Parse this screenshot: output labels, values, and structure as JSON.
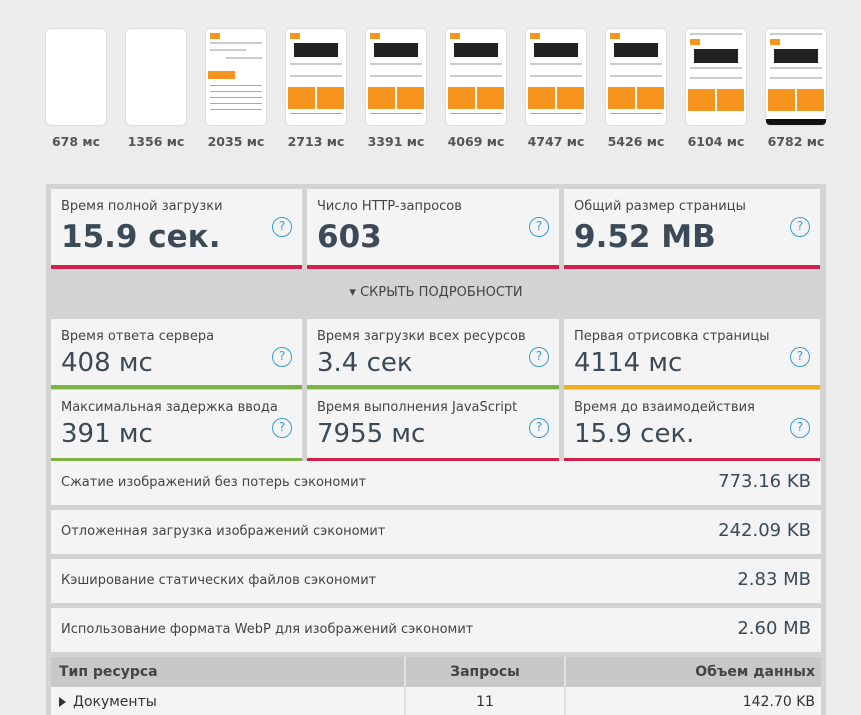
{
  "filmstrip": [
    {
      "label": "678 мс",
      "kind": "blank"
    },
    {
      "label": "1356 мс",
      "kind": "blank"
    },
    {
      "label": "2035 мс",
      "kind": "partial"
    },
    {
      "label": "2713 мс",
      "kind": "full"
    },
    {
      "label": "3391 мс",
      "kind": "full"
    },
    {
      "label": "4069 мс",
      "kind": "full"
    },
    {
      "label": "4747 мс",
      "kind": "full"
    },
    {
      "label": "5426 мс",
      "kind": "full"
    },
    {
      "label": "6104 мс",
      "kind": "full"
    },
    {
      "label": "6782 мс",
      "kind": "final"
    }
  ],
  "summary": {
    "load_time": {
      "label": "Время полной загрузки",
      "value": "15.9 сек.",
      "status": "bad"
    },
    "requests": {
      "label": "Число HTTP-запросов",
      "value": "603",
      "status": "bad"
    },
    "page_size": {
      "label": "Общий размер страницы",
      "value": "9.52 MB",
      "status": "bad"
    }
  },
  "toggle_label": "▾ СКРЫТЬ ПОДРОБНОСТИ",
  "help_glyph": "?",
  "details": {
    "server_response": {
      "label": "Время ответа сервера",
      "value": "408 мс",
      "status": "good"
    },
    "resources_load": {
      "label": "Время загрузки всех ресурсов",
      "value": "3.4 сек",
      "status": "good"
    },
    "first_paint": {
      "label": "Первая отрисовка страницы",
      "value": "4114 мс",
      "status": "warn"
    },
    "input_delay": {
      "label": "Максимальная задержка ввода",
      "value": "391 мс",
      "status": "good"
    },
    "js_execution": {
      "label": "Время выполнения JavaScript",
      "value": "7955 мс",
      "status": "bad"
    },
    "interactive": {
      "label": "Время до взаимодействия",
      "value": "15.9 сек.",
      "status": "bad"
    }
  },
  "savings": [
    {
      "label": "Сжатие изображений без потерь сэкономит",
      "value": "773.16 KB"
    },
    {
      "label": "Отложенная загрузка изображений сэкономит",
      "value": "242.09 KB"
    },
    {
      "label": "Кэширование статических файлов сэкономит",
      "value": "2.83 MB"
    },
    {
      "label": "Использование формата WebP для изображений сэкономит",
      "value": "2.60 MB"
    }
  ],
  "resource_table": {
    "headers": [
      "Тип ресурса",
      "Запросы",
      "Объем данных"
    ],
    "rows": [
      {
        "type": "Документы",
        "requests": "11",
        "size": "142.70 KB"
      }
    ]
  },
  "colors": {
    "bad": "#d41f4d",
    "good": "#7cb342",
    "warn": "#f0ad1e",
    "accent": "#3b9bd0"
  }
}
